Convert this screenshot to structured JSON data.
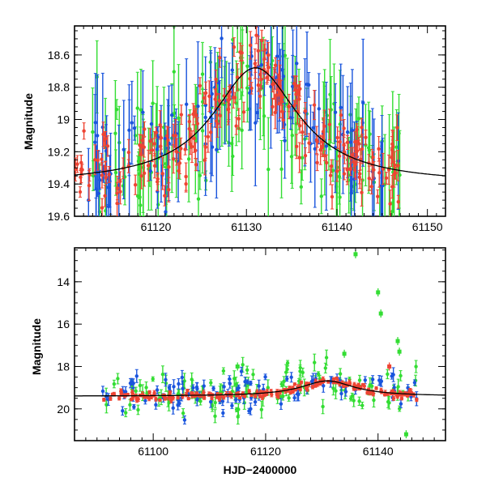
{
  "chart_data": [
    {
      "type": "scatter",
      "title": "",
      "xlabel": "",
      "ylabel": "Magnitude",
      "xlim": [
        61111,
        61152
      ],
      "ylim": [
        19.6,
        18.42
      ],
      "y_inverted": true,
      "xticks": [
        61120,
        61130,
        61140,
        61150
      ],
      "yticks": [
        18.6,
        18.8,
        19.0,
        19.2,
        19.4,
        19.6
      ],
      "ytick_labels": [
        "18.6",
        "18.8",
        "19",
        "19.2",
        "19.4",
        "19.6"
      ],
      "model_curve": {
        "baseline": 19.4,
        "peak": 18.68,
        "t0": 61131,
        "width": 5.8
      },
      "series": [
        {
          "name": "green",
          "color": "#33dd33",
          "seed": 11,
          "count": 150,
          "x_range": [
            61111,
            61147
          ],
          "scatter": 0.22,
          "err": [
            0.05,
            0.35
          ]
        },
        {
          "name": "blue",
          "color": "#1a55dd",
          "seed": 23,
          "count": 110,
          "x_range": [
            61112,
            61147
          ],
          "scatter": 0.18,
          "err": [
            0.05,
            0.4
          ]
        },
        {
          "name": "red",
          "color": "#ee4433",
          "seed": 37,
          "count": 240,
          "x_range": [
            61111,
            61147
          ],
          "scatter": 0.12,
          "err": [
            0.03,
            0.1
          ]
        }
      ]
    },
    {
      "type": "scatter",
      "title": "",
      "xlabel": "HJD−2400000",
      "ylabel": "Magnitude",
      "xlim": [
        61086,
        61152
      ],
      "ylim": [
        21.5,
        12.4
      ],
      "y_inverted": true,
      "xticks": [
        61100,
        61120,
        61140
      ],
      "yticks": [
        14,
        16,
        18,
        20
      ],
      "ytick_labels": [
        "14",
        "16",
        "18",
        "20"
      ],
      "model_curve": {
        "baseline": 19.4,
        "peak": 18.68,
        "t0": 61131,
        "width": 5.8
      },
      "series": [
        {
          "name": "green",
          "color": "#33dd33",
          "seed": 51,
          "count": 120,
          "x_range": [
            61091,
            61147
          ],
          "scatter": 0.6,
          "err": [
            0.1,
            0.4
          ]
        },
        {
          "name": "blue",
          "color": "#1a55dd",
          "seed": 63,
          "count": 100,
          "x_range": [
            61091,
            61147
          ],
          "scatter": 0.4,
          "err": [
            0.1,
            0.35
          ]
        },
        {
          "name": "red",
          "color": "#ee4433",
          "seed": 77,
          "count": 200,
          "x_range": [
            61091,
            61147
          ],
          "scatter": 0.1,
          "err": [
            0.05,
            0.12
          ]
        }
      ],
      "outliers": [
        {
          "series": "green",
          "x": 61136,
          "y": 12.7
        },
        {
          "series": "green",
          "x": 61140.5,
          "y": 15.5
        },
        {
          "series": "green",
          "x": 61140,
          "y": 14.5
        },
        {
          "series": "green",
          "x": 61143.5,
          "y": 16.8
        },
        {
          "series": "green",
          "x": 61143.8,
          "y": 17.3
        },
        {
          "series": "green",
          "x": 61134,
          "y": 17.4
        },
        {
          "series": "green",
          "x": 61115,
          "y": 18.0
        },
        {
          "series": "green",
          "x": 61145,
          "y": 21.2
        },
        {
          "series": "red",
          "x": 61142,
          "y": 18.0
        }
      ]
    }
  ]
}
